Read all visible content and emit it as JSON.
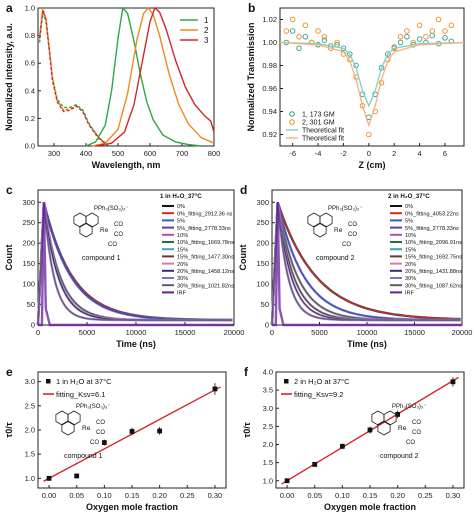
{
  "chart_data": [
    {
      "id": "a",
      "type": "line",
      "panel_label": "a",
      "xlabel": "Wavelength, nm",
      "ylabel": "Normalized intensity, a.u.",
      "xlim": [
        250,
        800
      ],
      "ylim": [
        0.0,
        1.0
      ],
      "xticks": [
        300,
        400,
        500,
        600,
        700,
        800
      ],
      "yticks": [
        0.0,
        0.2,
        0.4,
        0.6,
        0.8,
        1.0
      ],
      "legend_position": "top-right",
      "series": [
        {
          "name": "1",
          "color": "#2aa84a",
          "style": "solid",
          "x": [
            400,
            430,
            460,
            480,
            500,
            515,
            530,
            550,
            570,
            590,
            610,
            640,
            680,
            720,
            760
          ],
          "y": [
            0.0,
            0.03,
            0.15,
            0.4,
            0.78,
            1.0,
            0.96,
            0.76,
            0.52,
            0.32,
            0.19,
            0.08,
            0.03,
            0.01,
            0.0
          ]
        },
        {
          "name": "2",
          "color": "#f08a1c",
          "style": "solid",
          "x": [
            420,
            460,
            500,
            530,
            560,
            580,
            595,
            610,
            630,
            660,
            690,
            720,
            760,
            800
          ],
          "y": [
            0.0,
            0.02,
            0.12,
            0.38,
            0.78,
            0.96,
            1.0,
            0.95,
            0.8,
            0.52,
            0.3,
            0.16,
            0.06,
            0.02
          ]
        },
        {
          "name": "3",
          "color": "#d4252b",
          "style": "solid",
          "x": [
            430,
            480,
            520,
            550,
            580,
            600,
            615,
            630,
            650,
            680,
            710,
            740,
            770,
            790,
            800
          ],
          "y": [
            0.0,
            0.02,
            0.1,
            0.3,
            0.66,
            0.9,
            1.0,
            0.97,
            0.85,
            0.62,
            0.43,
            0.3,
            0.22,
            0.18,
            0.1
          ]
        },
        {
          "name": "",
          "color": "#2aa84a",
          "style": "dashed",
          "x": [
            255,
            265,
            275,
            285,
            295,
            310,
            330,
            350,
            370,
            390,
            410,
            440,
            470
          ],
          "y": [
            0.75,
            0.97,
            0.9,
            0.7,
            0.5,
            0.34,
            0.28,
            0.28,
            0.3,
            0.26,
            0.16,
            0.06,
            0.0
          ]
        },
        {
          "name": "",
          "color": "#f08a1c",
          "style": "dashed",
          "x": [
            255,
            265,
            275,
            285,
            295,
            310,
            330,
            350,
            370,
            390,
            410,
            440,
            470
          ],
          "y": [
            0.8,
            1.0,
            0.92,
            0.72,
            0.5,
            0.33,
            0.26,
            0.27,
            0.29,
            0.25,
            0.15,
            0.05,
            0.0
          ]
        },
        {
          "name": "",
          "color": "#d4252b",
          "style": "dashed",
          "x": [
            255,
            265,
            275,
            285,
            295,
            310,
            330,
            350,
            370,
            390,
            410,
            440,
            470
          ],
          "y": [
            0.78,
            0.98,
            0.92,
            0.7,
            0.48,
            0.32,
            0.25,
            0.26,
            0.29,
            0.25,
            0.15,
            0.06,
            0.0
          ]
        }
      ]
    },
    {
      "id": "b",
      "type": "scatter",
      "panel_label": "b",
      "xlabel": "Z (cm)",
      "ylabel": "Normalized Transmission",
      "xlim": [
        -7,
        7.5
      ],
      "ylim": [
        0.91,
        1.03
      ],
      "xticks": [
        -6,
        -4,
        -2,
        0,
        2,
        4,
        6
      ],
      "yticks": [
        0.92,
        0.94,
        0.96,
        0.98,
        1.0,
        1.02
      ],
      "legend_position": "bottom-left",
      "series": [
        {
          "name": "1, 173 GM",
          "color": "#29a08f",
          "marker": "circle",
          "x": [
            -6.5,
            -6,
            -5.5,
            -5,
            -4.5,
            -4,
            -3.5,
            -3,
            -2.5,
            -2,
            -1.5,
            -1,
            -0.5,
            0,
            0.5,
            1,
            1.5,
            2,
            2.5,
            3,
            3.5,
            4,
            4.5,
            5,
            5.5,
            6,
            6.5
          ],
          "y": [
            1.0,
            1.01,
            0.995,
            1.005,
            1.0,
            0.998,
            1.002,
            0.997,
            0.998,
            0.995,
            0.99,
            0.98,
            0.955,
            0.935,
            0.955,
            0.978,
            0.99,
            0.996,
            1.0,
            1.005,
            0.998,
            1.003,
            1.0,
            1.006,
            0.999,
            1.004,
            1.001
          ]
        },
        {
          "name": "2, 301 GM",
          "color": "#f08a1c",
          "marker": "circle",
          "x": [
            -6.5,
            -6,
            -5.5,
            -5,
            -4.5,
            -4,
            -3.5,
            -3,
            -2.5,
            -2,
            -1.5,
            -1,
            -0.5,
            0,
            0.5,
            1,
            1.5,
            2,
            2.5,
            3,
            3.5,
            4,
            4.5,
            5,
            5.5,
            6,
            6.5
          ],
          "y": [
            1.01,
            1.02,
            1.005,
            1.015,
            1.0,
            1.01,
            1.005,
            0.995,
            1.0,
            0.99,
            0.985,
            0.97,
            0.945,
            0.92,
            0.94,
            0.965,
            0.985,
            0.995,
            1.005,
            1.01,
            1.0,
            1.015,
            1.005,
            1.01,
            1.02,
            1.01,
            1.015
          ]
        },
        {
          "name": "Theoretical fit",
          "color": "#7fd1c7",
          "style": "solid",
          "x": [
            -7,
            -4,
            -2,
            -1.5,
            -1,
            -0.5,
            0,
            0.5,
            1,
            1.5,
            2,
            4,
            7.5
          ],
          "y": [
            1.0,
            0.999,
            0.995,
            0.99,
            0.978,
            0.958,
            0.945,
            0.958,
            0.978,
            0.99,
            0.995,
            0.999,
            1.0
          ]
        },
        {
          "name": "Theoretical fit",
          "color": "#f5b27a",
          "style": "solid",
          "x": [
            -7,
            -4,
            -2,
            -1.5,
            -1,
            -0.5,
            0,
            0.5,
            1,
            1.5,
            2,
            4,
            7.5
          ],
          "y": [
            1.0,
            0.998,
            0.992,
            0.984,
            0.968,
            0.945,
            0.928,
            0.945,
            0.968,
            0.984,
            0.992,
            0.998,
            1.0
          ]
        }
      ]
    },
    {
      "id": "c",
      "type": "line",
      "panel_label": "c",
      "xlabel": "Time (ns)",
      "ylabel": "Count",
      "xlim": [
        0,
        20000
      ],
      "ylim": [
        0,
        330
      ],
      "xticks": [
        0,
        5000,
        10000,
        15000,
        20000
      ],
      "yticks": [
        0,
        50,
        100,
        150,
        200,
        250,
        300
      ],
      "legend_title": "1 in H₂O_37°C",
      "legend_position": "top-right",
      "compound_label": "compound 1",
      "structure_label": "PPh₃(SO₃)₃⁻",
      "series": [
        {
          "name": "0%",
          "color": "#111111",
          "tau": 2912.36
        },
        {
          "name": "0%_fitting_2912.36 ns",
          "color": "#e02020",
          "tau": 2912.36
        },
        {
          "name": "5%",
          "color": "#2b5bd6",
          "tau": 2778.33
        },
        {
          "name": "5%_fitting_2778.33ns",
          "color": "#5a3fa0",
          "tau": 2778.33
        },
        {
          "name": "10%",
          "color": "#b84aa8",
          "tau": 1669.78
        },
        {
          "name": "10%_fitting_1669.78ns",
          "color": "#2a6e40",
          "tau": 1669.78
        },
        {
          "name": "15%",
          "color": "#3ea0c8",
          "tau": 1477.3
        },
        {
          "name": "15%_fitting_1477.30ns",
          "color": "#7a2e2e",
          "tau": 1477.3
        },
        {
          "name": "20%",
          "color": "#d87aa8",
          "tau": 1458.12
        },
        {
          "name": "20%_fitting_1458.12ns",
          "color": "#2f2f7a",
          "tau": 1458.12
        },
        {
          "name": "30%",
          "color": "#8e6bd0",
          "tau": 1021.82
        },
        {
          "name": "30%_fitting_1021.82ns",
          "color": "#5a5a5a",
          "tau": 1021.82
        },
        {
          "name": "IRF",
          "color": "#6a1aa0",
          "tau": 0
        }
      ]
    },
    {
      "id": "d",
      "type": "line",
      "panel_label": "d",
      "xlabel": "Time (ns)",
      "ylabel": "Count",
      "xlim": [
        0,
        20000
      ],
      "ylim": [
        0,
        330
      ],
      "xticks": [
        0,
        5000,
        10000,
        15000,
        20000
      ],
      "yticks": [
        0,
        50,
        100,
        150,
        200,
        250,
        300
      ],
      "legend_title": "2 in H₂O_37°C",
      "legend_position": "top-right",
      "compound_label": "compound 2",
      "structure_label": "PPh₃(SO₃)₃⁻",
      "series": [
        {
          "name": "0%",
          "color": "#111111",
          "tau": 4053.22
        },
        {
          "name": "0%_fitting_4053.22ns",
          "color": "#e02020",
          "tau": 4053.22
        },
        {
          "name": "5%",
          "color": "#2b5bd6",
          "tau": 2778.33
        },
        {
          "name": "5%_fitting_2778.33ns",
          "color": "#5a3fa0",
          "tau": 2778.33
        },
        {
          "name": "10%",
          "color": "#b84aa8",
          "tau": 2096.91
        },
        {
          "name": "10%_fitting_2096.91ns",
          "color": "#2a6e40",
          "tau": 2096.91
        },
        {
          "name": "15%",
          "color": "#3ea0c8",
          "tau": 1692.75
        },
        {
          "name": "15%_fitting_1692.75ns",
          "color": "#7a2e2e",
          "tau": 1692.75
        },
        {
          "name": "20%",
          "color": "#d87aa8",
          "tau": 1431.88
        },
        {
          "name": "20%_fitting_1431.88ns",
          "color": "#2f2f7a",
          "tau": 1431.88
        },
        {
          "name": "30%",
          "color": "#8e6bd0",
          "tau": 1087.62
        },
        {
          "name": "30%_fitting_1087.62ns",
          "color": "#5a5a5a",
          "tau": 1087.62
        },
        {
          "name": "IRF",
          "color": "#6a1aa0",
          "tau": 0
        }
      ]
    },
    {
      "id": "e",
      "type": "scatter",
      "panel_label": "e",
      "xlabel": "Oxygen mole fraction",
      "ylabel": "τ0/τ",
      "xlim": [
        -0.02,
        0.32
      ],
      "ylim": [
        0.8,
        3.2
      ],
      "xticks": [
        0.0,
        0.05,
        0.1,
        0.15,
        0.2,
        0.25,
        0.3
      ],
      "yticks": [
        1.0,
        1.5,
        2.0,
        2.5,
        3.0
      ],
      "legend_position": "top-left",
      "compound_label": "compound 1",
      "structure_label": "PPh₃(SO₃)₃⁻",
      "series": [
        {
          "name": "1 in H₂O at 37°C",
          "color": "#111111",
          "marker": "square",
          "x": [
            0.0,
            0.05,
            0.1,
            0.15,
            0.2,
            0.3
          ],
          "y": [
            1.0,
            1.05,
            1.74,
            1.97,
            1.98,
            2.85
          ],
          "err": [
            0.05,
            0.05,
            0.06,
            0.08,
            0.08,
            0.12
          ]
        },
        {
          "name": "fitting_Ksv=6.1",
          "color": "#d4252b",
          "style": "solid",
          "slope": 6.1,
          "intercept": 1.0
        }
      ]
    },
    {
      "id": "f",
      "type": "scatter",
      "panel_label": "f",
      "xlabel": "Oxygen mole fraction",
      "ylabel": "τ0/τ",
      "xlim": [
        -0.02,
        0.32
      ],
      "ylim": [
        0.8,
        4.0
      ],
      "xticks": [
        0.0,
        0.05,
        0.1,
        0.15,
        0.2,
        0.25,
        0.3
      ],
      "yticks": [
        1.0,
        1.5,
        2.0,
        2.5,
        3.0,
        3.5,
        4.0
      ],
      "legend_position": "top-left",
      "compound_label": "compound 2",
      "structure_label": "PPh₃(SO₃)₃⁻",
      "series": [
        {
          "name": "2 in H₂O at 37°C",
          "color": "#111111",
          "marker": "square",
          "x": [
            0.0,
            0.05,
            0.1,
            0.15,
            0.2,
            0.3
          ],
          "y": [
            1.0,
            1.45,
            1.95,
            2.4,
            2.83,
            3.73
          ],
          "err": [
            0.04,
            0.06,
            0.08,
            0.1,
            0.11,
            0.13
          ]
        },
        {
          "name": "fitting_Ksv=9.2",
          "color": "#d4252b",
          "style": "solid",
          "slope": 9.2,
          "intercept": 1.0
        }
      ]
    }
  ]
}
